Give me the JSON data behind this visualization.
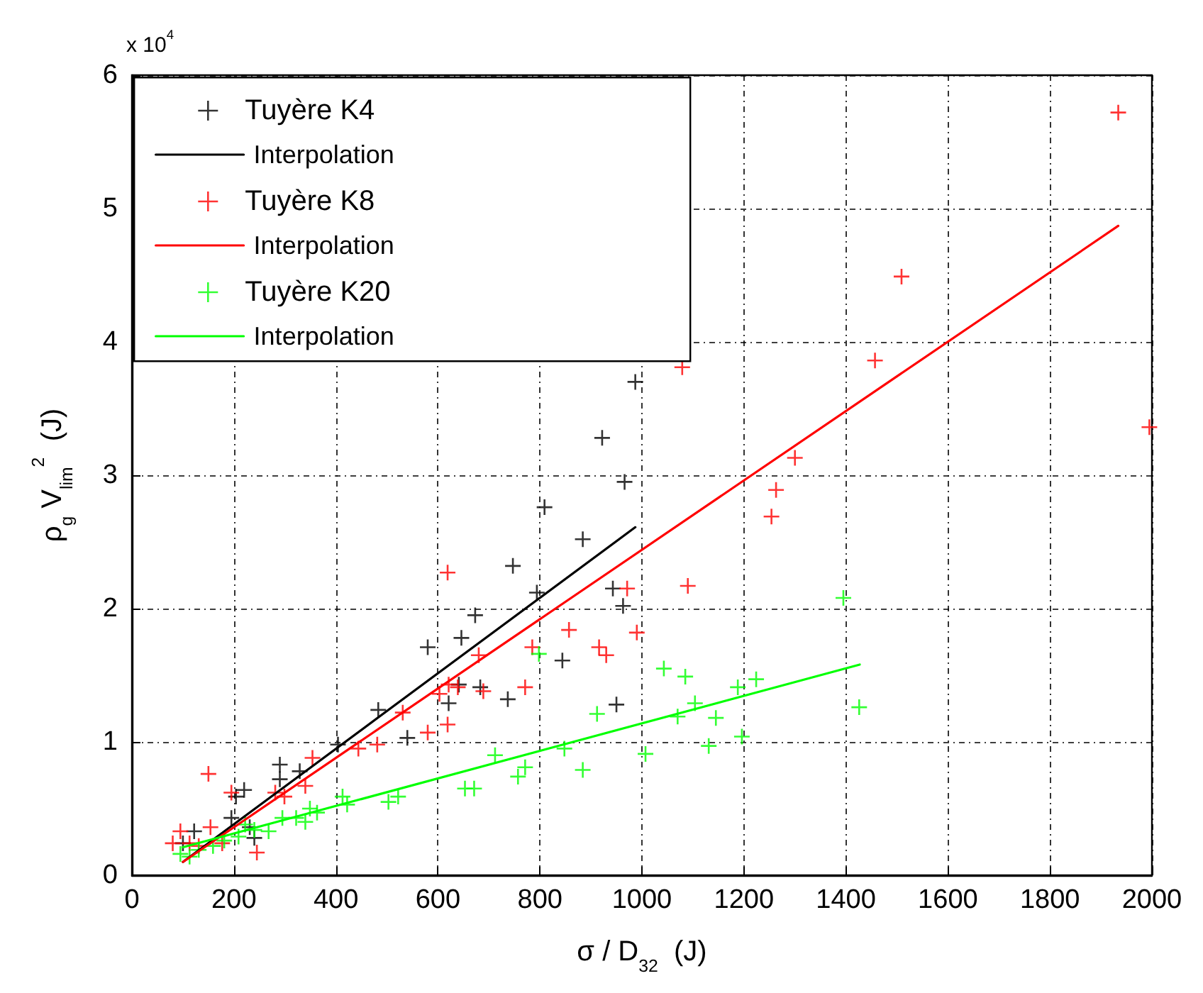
{
  "chart_data": {
    "type": "scatter",
    "xlabel": "σ / D$_{32}$  (J)",
    "ylabel": "ρ$_{g}$ V$_{lim}$$^{2}$  (J)",
    "annotations": [
      "x 10$^{4}$"
    ],
    "xlim": [
      0,
      2000
    ],
    "xticks": [
      0,
      200,
      400,
      600,
      800,
      1000,
      1200,
      1400,
      1600,
      1800,
      2000
    ],
    "ylim": [
      0,
      6
    ],
    "yticks": [
      0,
      1,
      2,
      3,
      4,
      5,
      6
    ],
    "grid": true,
    "legend": "top left",
    "line_style": "solid",
    "series": [
      {
        "name": "Tuyère K4",
        "type": "scatter",
        "marker": "cross",
        "color": "#000000",
        "x": [
          987,
          922,
          966,
          809,
          884,
          747,
          794,
          943,
          963,
          673,
          646,
          580,
          844,
          641,
          683,
          621,
          737,
          950,
          483,
          540,
          404,
          290,
          290,
          329,
          220,
          204,
          195,
          231,
          240,
          122,
          100
        ],
        "values": [
          3.7,
          3.28,
          2.95,
          2.76,
          2.52,
          2.32,
          2.12,
          2.15,
          2.02,
          1.95,
          1.78,
          1.71,
          1.61,
          1.43,
          1.41,
          1.29,
          1.32,
          1.28,
          1.24,
          1.03,
          0.98,
          0.83,
          0.72,
          0.78,
          0.64,
          0.59,
          0.43,
          0.36,
          0.28,
          0.33,
          0.24
        ]
      },
      {
        "name": "Interpolation",
        "type": "line",
        "color": "#000000",
        "x": [
          100,
          987
        ],
        "values": [
          0.1,
          2.61
        ]
      },
      {
        "name": "Tuyère K8",
        "type": "scatter",
        "marker": "cross",
        "color": "#ff0000",
        "x": [
          1934,
          1509,
          1457,
          1300,
          1263,
          1254,
          1079,
          1090,
          1995,
          619,
          971,
          857,
          990,
          916,
          930,
          785,
          680,
          771,
          689,
          621,
          603,
          639,
          531,
          619,
          580,
          481,
          444,
          354,
          340,
          299,
          281,
          150,
          195,
          154,
          245,
          95,
          80,
          113,
          131,
          177
        ],
        "values": [
          5.72,
          4.49,
          3.86,
          3.13,
          2.89,
          2.69,
          3.81,
          2.17,
          3.36,
          2.27,
          2.15,
          1.84,
          1.82,
          1.71,
          1.65,
          1.71,
          1.65,
          1.41,
          1.38,
          1.43,
          1.36,
          1.41,
          1.22,
          1.13,
          1.07,
          0.98,
          0.95,
          0.88,
          0.67,
          0.59,
          0.62,
          0.76,
          0.62,
          0.36,
          0.17,
          0.33,
          0.24,
          0.24,
          0.22,
          0.24
        ]
      },
      {
        "name": "Interpolation",
        "type": "line",
        "color": "#ff0000",
        "x": [
          100,
          1934
        ],
        "values": [
          0.1,
          4.87
        ]
      },
      {
        "name": "Tuyère K20",
        "type": "scatter",
        "marker": "cross",
        "color": "#00ff00",
        "x": [
          1395,
          1085,
          1224,
          1188,
          1104,
          1145,
          1196,
          1131,
          1426,
          1043,
          912,
          1070,
          798,
          848,
          1007,
          884,
          712,
          771,
          757,
          653,
          671,
          522,
          503,
          413,
          422,
          363,
          340,
          349,
          322,
          295,
          268,
          240,
          222,
          209,
          181,
          159,
          131,
          113,
          95
        ],
        "values": [
          2.08,
          1.49,
          1.47,
          1.41,
          1.29,
          1.18,
          1.04,
          0.97,
          1.26,
          1.55,
          1.21,
          1.19,
          1.66,
          0.95,
          0.91,
          0.79,
          0.9,
          0.81,
          0.74,
          0.65,
          0.65,
          0.59,
          0.55,
          0.59,
          0.53,
          0.47,
          0.4,
          0.5,
          0.43,
          0.43,
          0.33,
          0.34,
          0.38,
          0.29,
          0.26,
          0.22,
          0.19,
          0.14,
          0.16
        ]
      },
      {
        "name": "Interpolation",
        "type": "line",
        "color": "#00ff00",
        "x": [
          100,
          1427
        ],
        "values": [
          0.21,
          1.58
        ]
      }
    ]
  }
}
